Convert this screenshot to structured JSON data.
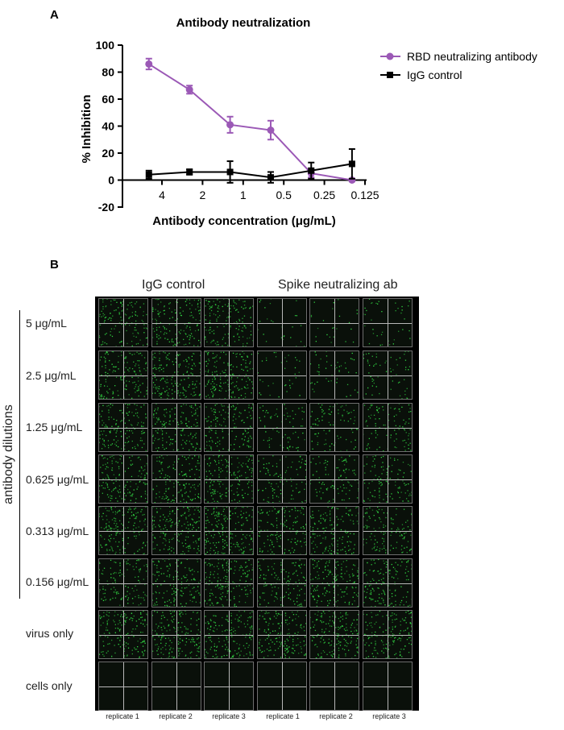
{
  "panel_a_label": "A",
  "panel_b_label": "B",
  "chart_data": {
    "type": "line",
    "title": "Antibody neutralization",
    "xlabel": "Antibody concentration (μg/mL)",
    "ylabel": "% Inhibition",
    "x_scale": "log2-reversed",
    "x_tick_labels": [
      "4",
      "2",
      "1",
      "0.5",
      "0.25",
      "0.125"
    ],
    "x_ticks": [
      4,
      2,
      1,
      0.5,
      0.25,
      0.125
    ],
    "ylim": [
      -20,
      100
    ],
    "y_ticks": [
      -20,
      0,
      20,
      40,
      60,
      80,
      100
    ],
    "legend_position": "top-right",
    "series": [
      {
        "name": "RBD neutralizing antibody",
        "color": "#9b59b6",
        "marker": "circle",
        "x": [
          5,
          2.5,
          1.25,
          0.625,
          0.313,
          0.156
        ],
        "y": [
          86,
          67,
          41,
          37,
          5,
          0
        ],
        "error": [
          4,
          3,
          6,
          7,
          3,
          1
        ]
      },
      {
        "name": "IgG control",
        "color": "#000000",
        "marker": "square",
        "x": [
          5,
          2.5,
          1.25,
          0.625,
          0.313,
          0.156
        ],
        "y": [
          4,
          6,
          6,
          2,
          7,
          12
        ],
        "error": [
          3,
          2,
          8,
          4,
          6,
          11
        ]
      }
    ]
  },
  "panel_b": {
    "group_titles": [
      "IgG control",
      "Spike neutralizing ab"
    ],
    "side_label": "antibody dilutions",
    "rows": [
      {
        "label": "5 μg/mL",
        "density": [
          0.55,
          0.6,
          0.6,
          0.1,
          0.1,
          0.15
        ]
      },
      {
        "label": "2.5 μg/mL",
        "density": [
          0.65,
          0.7,
          0.7,
          0.15,
          0.2,
          0.25
        ]
      },
      {
        "label": "1.25 μg/mL",
        "density": [
          0.6,
          0.65,
          0.6,
          0.3,
          0.35,
          0.4
        ]
      },
      {
        "label": "0.625 μg/mL",
        "density": [
          0.6,
          0.6,
          0.65,
          0.4,
          0.4,
          0.45
        ]
      },
      {
        "label": "0.313  μg/mL",
        "density": [
          0.7,
          0.7,
          0.75,
          0.6,
          0.6,
          0.5
        ]
      },
      {
        "label": "0.156 μg/mL",
        "density": [
          0.5,
          0.6,
          0.7,
          0.55,
          0.65,
          0.6
        ]
      },
      {
        "label": "virus only",
        "density": [
          0.65,
          0.7,
          0.65,
          0.65,
          0.7,
          0.65
        ]
      },
      {
        "label": "cells only",
        "density": [
          0,
          0,
          0,
          0,
          0,
          0
        ]
      }
    ],
    "replicate_labels": [
      "replicate 1",
      "replicate 2",
      "replicate 3",
      "replicate 1",
      "replicate 2",
      "replicate 3"
    ],
    "cell_color": "#33dd44"
  }
}
